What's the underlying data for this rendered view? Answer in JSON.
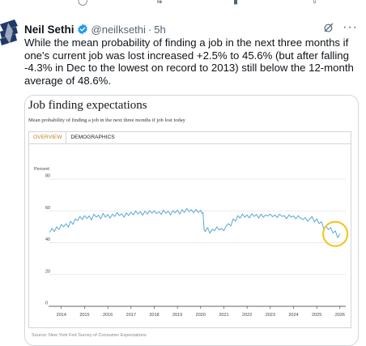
{
  "tweet": {
    "author_name": "Neil Sethi",
    "handle": "@neilksethi",
    "age": "5h",
    "text": "While the mean probability of finding a job in the next three months if one's current job was lost increased +2.5% to 45.6% (but after falling -4.3% in Dec to the lowest on record to 2013) still below the 12-month average of 48.6%.",
    "icons": [
      "verified-badge-icon",
      "grok-icon",
      "more-icon"
    ],
    "colors": {
      "verified": "#1d9bf0",
      "text": "#0f1419",
      "secondary": "#536471"
    }
  },
  "chart_data": {
    "type": "line",
    "title": "Job finding expectations",
    "subtitle": "Mean probability of finding a job in the next three months if job lost today",
    "tabs": [
      "OVERVIEW",
      "DEMOGRAPHICS"
    ],
    "active_tab": "OVERVIEW",
    "ylabel": "Percent",
    "ylim": [
      0,
      80
    ],
    "y_ticks": [
      0,
      20,
      40,
      60,
      80
    ],
    "x_ticks": [
      "2014",
      "2015",
      "2016",
      "2017",
      "2018",
      "2019",
      "2020",
      "2021",
      "2022",
      "2023",
      "2024",
      "2025",
      "2026"
    ],
    "xlim": [
      2013.45,
      2026.25
    ],
    "grid": true,
    "source": "Source: New York Fed Survey of Consumer Expectations",
    "line_color": "#5aa8d8",
    "highlight_color": "#f0c419",
    "highlight_center": [
      2025.8,
      45.5
    ],
    "series": [
      {
        "points": [
          [
            2013.5,
            46.5
          ],
          [
            2013.6,
            49.0
          ],
          [
            2013.7,
            47.0
          ],
          [
            2013.8,
            50.0
          ],
          [
            2013.9,
            48.3
          ],
          [
            2014.0,
            51.5
          ],
          [
            2014.1,
            50.0
          ],
          [
            2014.2,
            52.0
          ],
          [
            2014.3,
            49.8
          ],
          [
            2014.4,
            53.5
          ],
          [
            2014.5,
            51.5
          ],
          [
            2014.6,
            55.0
          ],
          [
            2014.7,
            53.8
          ],
          [
            2014.8,
            56.5
          ],
          [
            2014.9,
            54.5
          ],
          [
            2015.0,
            57.0
          ],
          [
            2015.1,
            55.2
          ],
          [
            2015.2,
            56.8
          ],
          [
            2015.3,
            54.2
          ],
          [
            2015.4,
            58.0
          ],
          [
            2015.5,
            56.0
          ],
          [
            2015.6,
            57.3
          ],
          [
            2015.7,
            55.0
          ],
          [
            2015.8,
            58.5
          ],
          [
            2015.9,
            56.0
          ],
          [
            2016.0,
            57.8
          ],
          [
            2016.1,
            55.5
          ],
          [
            2016.2,
            58.0
          ],
          [
            2016.3,
            56.5
          ],
          [
            2016.4,
            59.0
          ],
          [
            2016.5,
            57.0
          ],
          [
            2016.6,
            58.2
          ],
          [
            2016.7,
            56.0
          ],
          [
            2016.8,
            58.8
          ],
          [
            2016.9,
            57.0
          ],
          [
            2017.0,
            59.2
          ],
          [
            2017.1,
            57.5
          ],
          [
            2017.2,
            60.0
          ],
          [
            2017.3,
            58.0
          ],
          [
            2017.4,
            59.5
          ],
          [
            2017.5,
            57.2
          ],
          [
            2017.6,
            59.8
          ],
          [
            2017.7,
            58.0
          ],
          [
            2017.8,
            60.2
          ],
          [
            2017.9,
            58.5
          ],
          [
            2018.0,
            60.0
          ],
          [
            2018.1,
            58.3
          ],
          [
            2018.2,
            59.5
          ],
          [
            2018.3,
            57.8
          ],
          [
            2018.4,
            60.5
          ],
          [
            2018.5,
            58.5
          ],
          [
            2018.6,
            59.8
          ],
          [
            2018.7,
            57.5
          ],
          [
            2018.8,
            60.2
          ],
          [
            2018.9,
            58.8
          ],
          [
            2019.0,
            60.5
          ],
          [
            2019.1,
            58.0
          ],
          [
            2019.2,
            60.8
          ],
          [
            2019.3,
            59.0
          ],
          [
            2019.4,
            61.5
          ],
          [
            2019.5,
            59.5
          ],
          [
            2019.6,
            60.8
          ],
          [
            2019.7,
            58.8
          ],
          [
            2019.8,
            61.0
          ],
          [
            2019.9,
            59.0
          ],
          [
            2020.0,
            60.5
          ],
          [
            2020.05,
            58.5
          ],
          [
            2020.1,
            59.0
          ],
          [
            2020.15,
            48.0
          ],
          [
            2020.2,
            47.0
          ],
          [
            2020.3,
            49.5
          ],
          [
            2020.4,
            46.0
          ],
          [
            2020.5,
            48.5
          ],
          [
            2020.6,
            47.5
          ],
          [
            2020.7,
            50.0
          ],
          [
            2020.8,
            48.0
          ],
          [
            2020.9,
            49.0
          ],
          [
            2021.0,
            47.5
          ],
          [
            2021.1,
            50.5
          ],
          [
            2021.2,
            52.0
          ],
          [
            2021.3,
            50.5
          ],
          [
            2021.4,
            55.0
          ],
          [
            2021.5,
            53.5
          ],
          [
            2021.6,
            57.0
          ],
          [
            2021.7,
            55.5
          ],
          [
            2021.8,
            58.0
          ],
          [
            2021.9,
            56.0
          ],
          [
            2022.0,
            57.5
          ],
          [
            2022.1,
            55.5
          ],
          [
            2022.2,
            58.2
          ],
          [
            2022.3,
            56.5
          ],
          [
            2022.4,
            57.8
          ],
          [
            2022.5,
            55.5
          ],
          [
            2022.6,
            58.0
          ],
          [
            2022.7,
            56.0
          ],
          [
            2022.8,
            57.5
          ],
          [
            2022.9,
            56.8
          ],
          [
            2023.0,
            58.0
          ],
          [
            2023.1,
            56.3
          ],
          [
            2023.2,
            57.5
          ],
          [
            2023.3,
            55.8
          ],
          [
            2023.4,
            58.0
          ],
          [
            2023.5,
            56.5
          ],
          [
            2023.6,
            57.0
          ],
          [
            2023.7,
            55.0
          ],
          [
            2023.8,
            57.5
          ],
          [
            2023.9,
            56.0
          ],
          [
            2024.0,
            56.8
          ],
          [
            2024.1,
            55.0
          ],
          [
            2024.2,
            57.0
          ],
          [
            2024.3,
            55.5
          ],
          [
            2024.4,
            54.5
          ],
          [
            2024.5,
            55.8
          ],
          [
            2024.6,
            53.5
          ],
          [
            2024.7,
            55.0
          ],
          [
            2024.8,
            56.5
          ],
          [
            2024.9,
            53.0
          ],
          [
            2025.0,
            55.0
          ],
          [
            2025.1,
            52.0
          ],
          [
            2025.2,
            53.2
          ],
          [
            2025.3,
            49.0
          ],
          [
            2025.4,
            50.5
          ],
          [
            2025.5,
            48.2
          ],
          [
            2025.6,
            49.5
          ],
          [
            2025.7,
            46.0
          ],
          [
            2025.8,
            47.5
          ],
          [
            2025.9,
            43.1
          ],
          [
            2026.0,
            45.6
          ]
        ]
      }
    ]
  }
}
